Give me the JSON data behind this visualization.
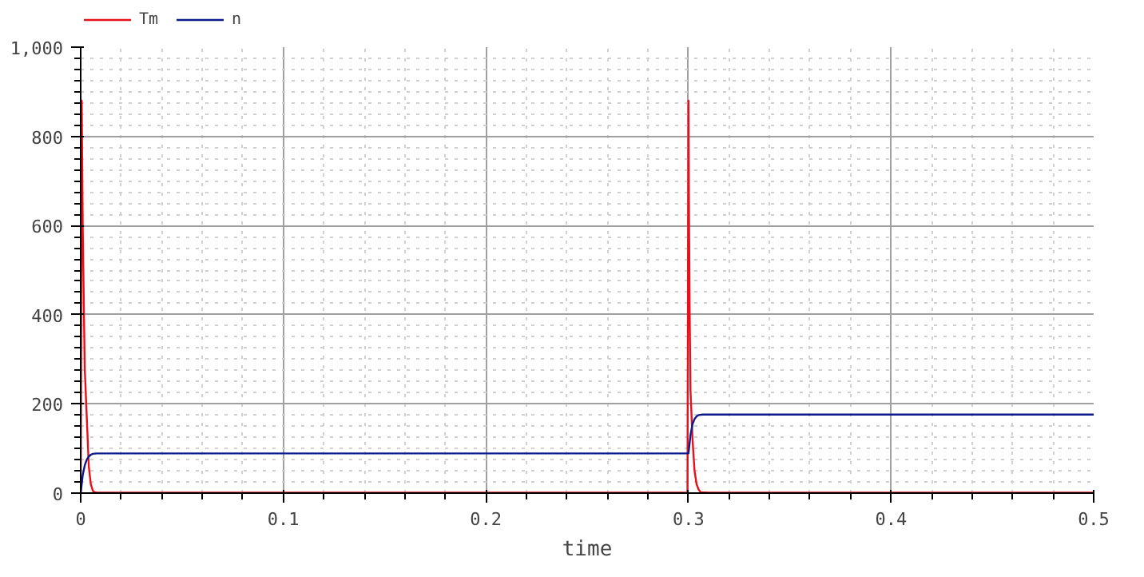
{
  "chart_data": {
    "type": "line",
    "xlabel": "time",
    "xlim": [
      0,
      0.5
    ],
    "ylim": [
      0,
      1000
    ],
    "xticks": [
      0,
      0.1,
      0.2,
      0.3,
      0.4,
      0.5
    ],
    "yticks": [
      0,
      200,
      400,
      600,
      800,
      {
        "value": 1000,
        "label": "1,000"
      }
    ],
    "grid": true,
    "legend": "top left",
    "line_style": "solid",
    "marker": "none",
    "series": [
      {
        "name": "Tm",
        "color": "#e8101a",
        "x": [
          0,
          0.0005,
          0.001,
          0.002,
          0.003,
          0.004,
          0.005,
          0.006,
          0.007,
          0.008,
          0.01,
          0.1,
          0.2,
          0.2995,
          0.3,
          0.3003,
          0.3006,
          0.301,
          0.302,
          0.303,
          0.304,
          0.305,
          0.306,
          0.31,
          0.4,
          0.5
        ],
        "values": [
          0,
          880,
          600,
          280,
          170,
          60,
          20,
          5,
          2,
          1,
          1,
          1,
          1,
          1,
          880,
          600,
          400,
          230,
          120,
          50,
          20,
          8,
          2,
          1,
          1,
          1
        ]
      },
      {
        "name": "n",
        "color": "#0b1a8c",
        "x": [
          0,
          0.001,
          0.002,
          0.003,
          0.004,
          0.005,
          0.006,
          0.008,
          0.01,
          0.1,
          0.2,
          0.3,
          0.301,
          0.302,
          0.303,
          0.304,
          0.305,
          0.307,
          0.31,
          0.4,
          0.5
        ],
        "values": [
          0,
          40,
          62,
          75,
          82,
          86,
          88,
          89,
          89,
          89,
          89,
          89,
          130,
          155,
          166,
          172,
          175,
          176,
          176,
          176,
          176
        ]
      }
    ]
  }
}
